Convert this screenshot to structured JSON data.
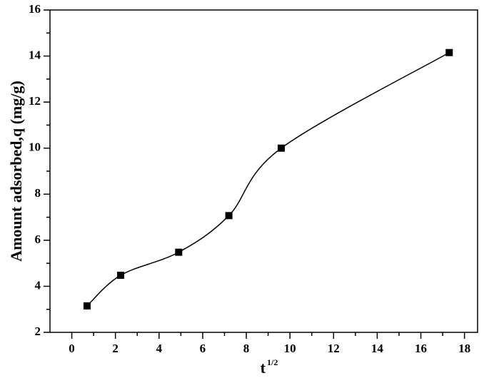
{
  "chart_data": {
    "type": "line",
    "x_label": "t",
    "x_label_superscript": "1/2",
    "y_label": "Amount adsorbed,q (mg/g)",
    "x": [
      0.7,
      2.24,
      4.9,
      7.2,
      9.6,
      17.3
    ],
    "series": [
      {
        "color": "#000000",
        "values": [
          3.15,
          4.48,
          5.48,
          7.07,
          10.0,
          14.15
        ]
      }
    ],
    "xlim": [
      -1,
      18.6
    ],
    "xticks": [
      0,
      2,
      4,
      6,
      8,
      10,
      12,
      14,
      16,
      18
    ],
    "ylim": [
      2,
      16
    ],
    "yticks": [
      2,
      4,
      6,
      8,
      10,
      12,
      14,
      16
    ],
    "grid": false,
    "smooth": true,
    "marker": "square"
  }
}
